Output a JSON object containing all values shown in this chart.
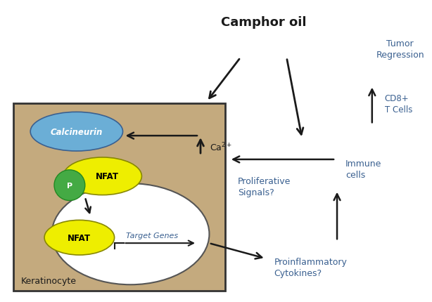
{
  "bg_color": "#ffffff",
  "cell_box_color": "#c4aa7e",
  "arrow_color": "#1a1a1a",
  "text_color": "#1a1a1a",
  "blue_text_color": "#3a6090",
  "calcineurin_color": "#6baed6",
  "calcineurin_edge": "#3a6090",
  "nfat_color": "#eeee00",
  "nfat_edge": "#888800",
  "p_color": "#44aa44",
  "p_edge": "#228822",
  "title": "Camphor oil",
  "keratinocyte_label": "Keratinocyte",
  "tumor_regression": "Tumor\nRegression",
  "cd8_label": "CD8+\nT Cells",
  "immune_cells": "Immune\ncells",
  "proliferative": "Proliferative\nSignals?",
  "proinflammatory": "Proinflammatory\nCytokines?",
  "calcineurin_text": "Calcineurin",
  "nfat_text": "NFAT",
  "p_text": "P",
  "target_genes_text": "Target Genes"
}
